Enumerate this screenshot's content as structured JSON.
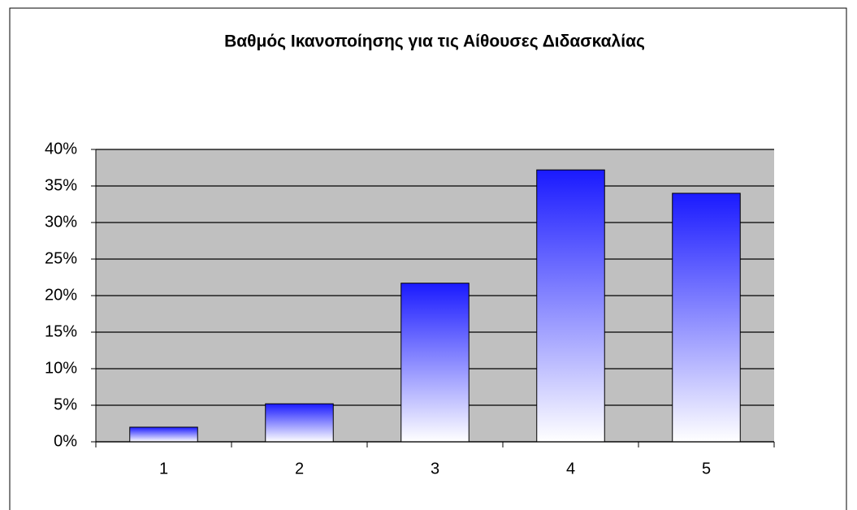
{
  "chart_data": {
    "type": "bar",
    "title": "Βαθμός Ικανοποίησης για τις Αίθουσες Διδασκαλίας",
    "categories": [
      "1",
      "2",
      "3",
      "4",
      "5"
    ],
    "values": [
      2,
      5.2,
      21.7,
      37.2,
      34
    ],
    "color": "#1a1aff",
    "plot_background": "#c0c0c0",
    "ylim": [
      0,
      40
    ],
    "yticks": [
      {
        "value": 0,
        "label": "0%"
      },
      {
        "value": 5,
        "label": "5%"
      },
      {
        "value": 10,
        "label": "10%"
      },
      {
        "value": 15,
        "label": "15%"
      },
      {
        "value": 20,
        "label": "20%"
      },
      {
        "value": 25,
        "label": "25%"
      },
      {
        "value": 30,
        "label": "30%"
      },
      {
        "value": 35,
        "label": "35%"
      },
      {
        "value": 40,
        "label": "40%"
      }
    ],
    "grid": true
  }
}
